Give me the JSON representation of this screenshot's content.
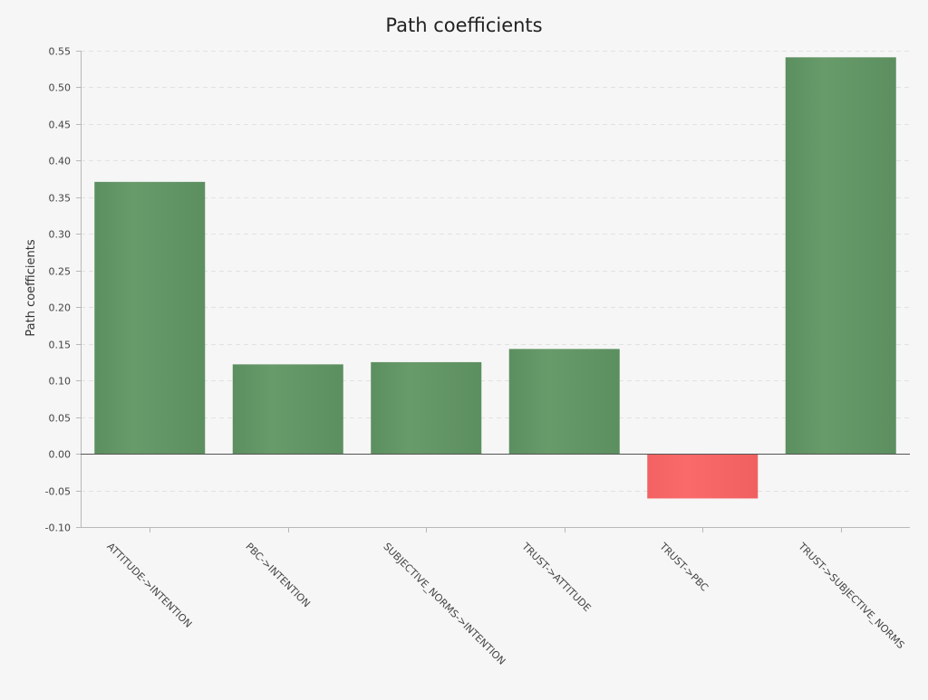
{
  "chart_data": {
    "type": "bar",
    "title": "Path coefficients",
    "xlabel": "",
    "ylabel": "Path coefficients",
    "categories": [
      "ATTITUDE->INTENTION",
      "PBC->INTENTION",
      "SUBJECTIVE_NORMS->INTENTION",
      "TRUST->ATTITUDE",
      "TRUST->PBC",
      "TRUST->SUBJECTIVE_NORMS"
    ],
    "values": [
      0.371,
      0.122,
      0.125,
      0.143,
      -0.061,
      0.541
    ],
    "ylim": [
      -0.1,
      0.55
    ],
    "yticks": [
      "-0.10",
      "-0.05",
      "0.00",
      "0.05",
      "0.10",
      "0.15",
      "0.20",
      "0.25",
      "0.30",
      "0.35",
      "0.40",
      "0.45",
      "0.50",
      "0.55"
    ],
    "grid": true,
    "legend": "none",
    "colors": {
      "positive": "#5f9563",
      "negative": "#f46464",
      "grid": "#e2e2e2",
      "axis": "#b8b8b8",
      "zero_line": "#555555",
      "background": "#f6f6f6"
    }
  }
}
